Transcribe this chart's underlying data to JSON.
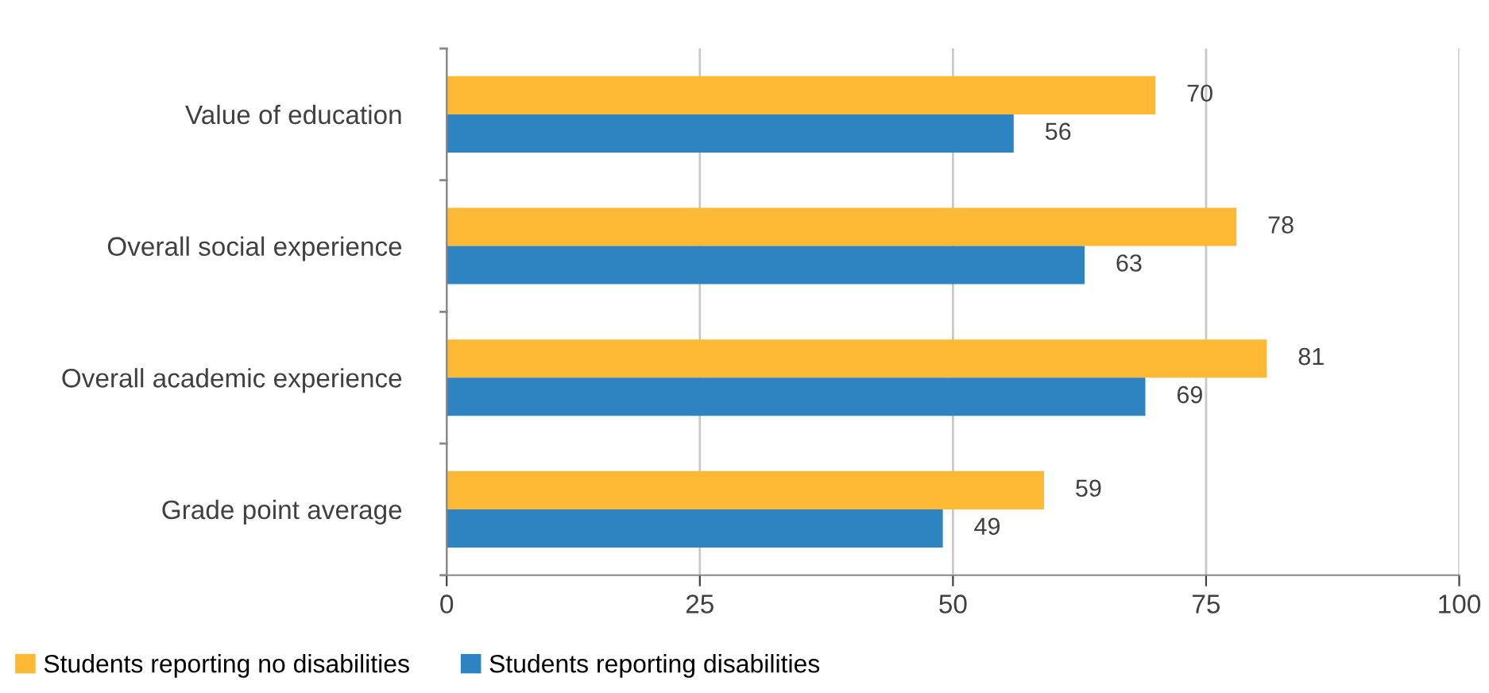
{
  "chart_data": {
    "type": "bar",
    "orientation": "horizontal",
    "categories": [
      "Value of education",
      "Overall social experience",
      "Overall academic experience",
      "Grade point average"
    ],
    "series": [
      {
        "name": "Students reporting no disabilities",
        "color": "#fdb933",
        "values": [
          70,
          78,
          81,
          59
        ]
      },
      {
        "name": "Students reporting disabilities",
        "color": "#2e83c2",
        "values": [
          56,
          63,
          69,
          49
        ]
      }
    ],
    "xlim": [
      0,
      100
    ],
    "xticks": [
      0,
      25,
      50,
      75,
      100
    ],
    "grid": "x",
    "legend": "bottom left",
    "data_labels": true
  }
}
